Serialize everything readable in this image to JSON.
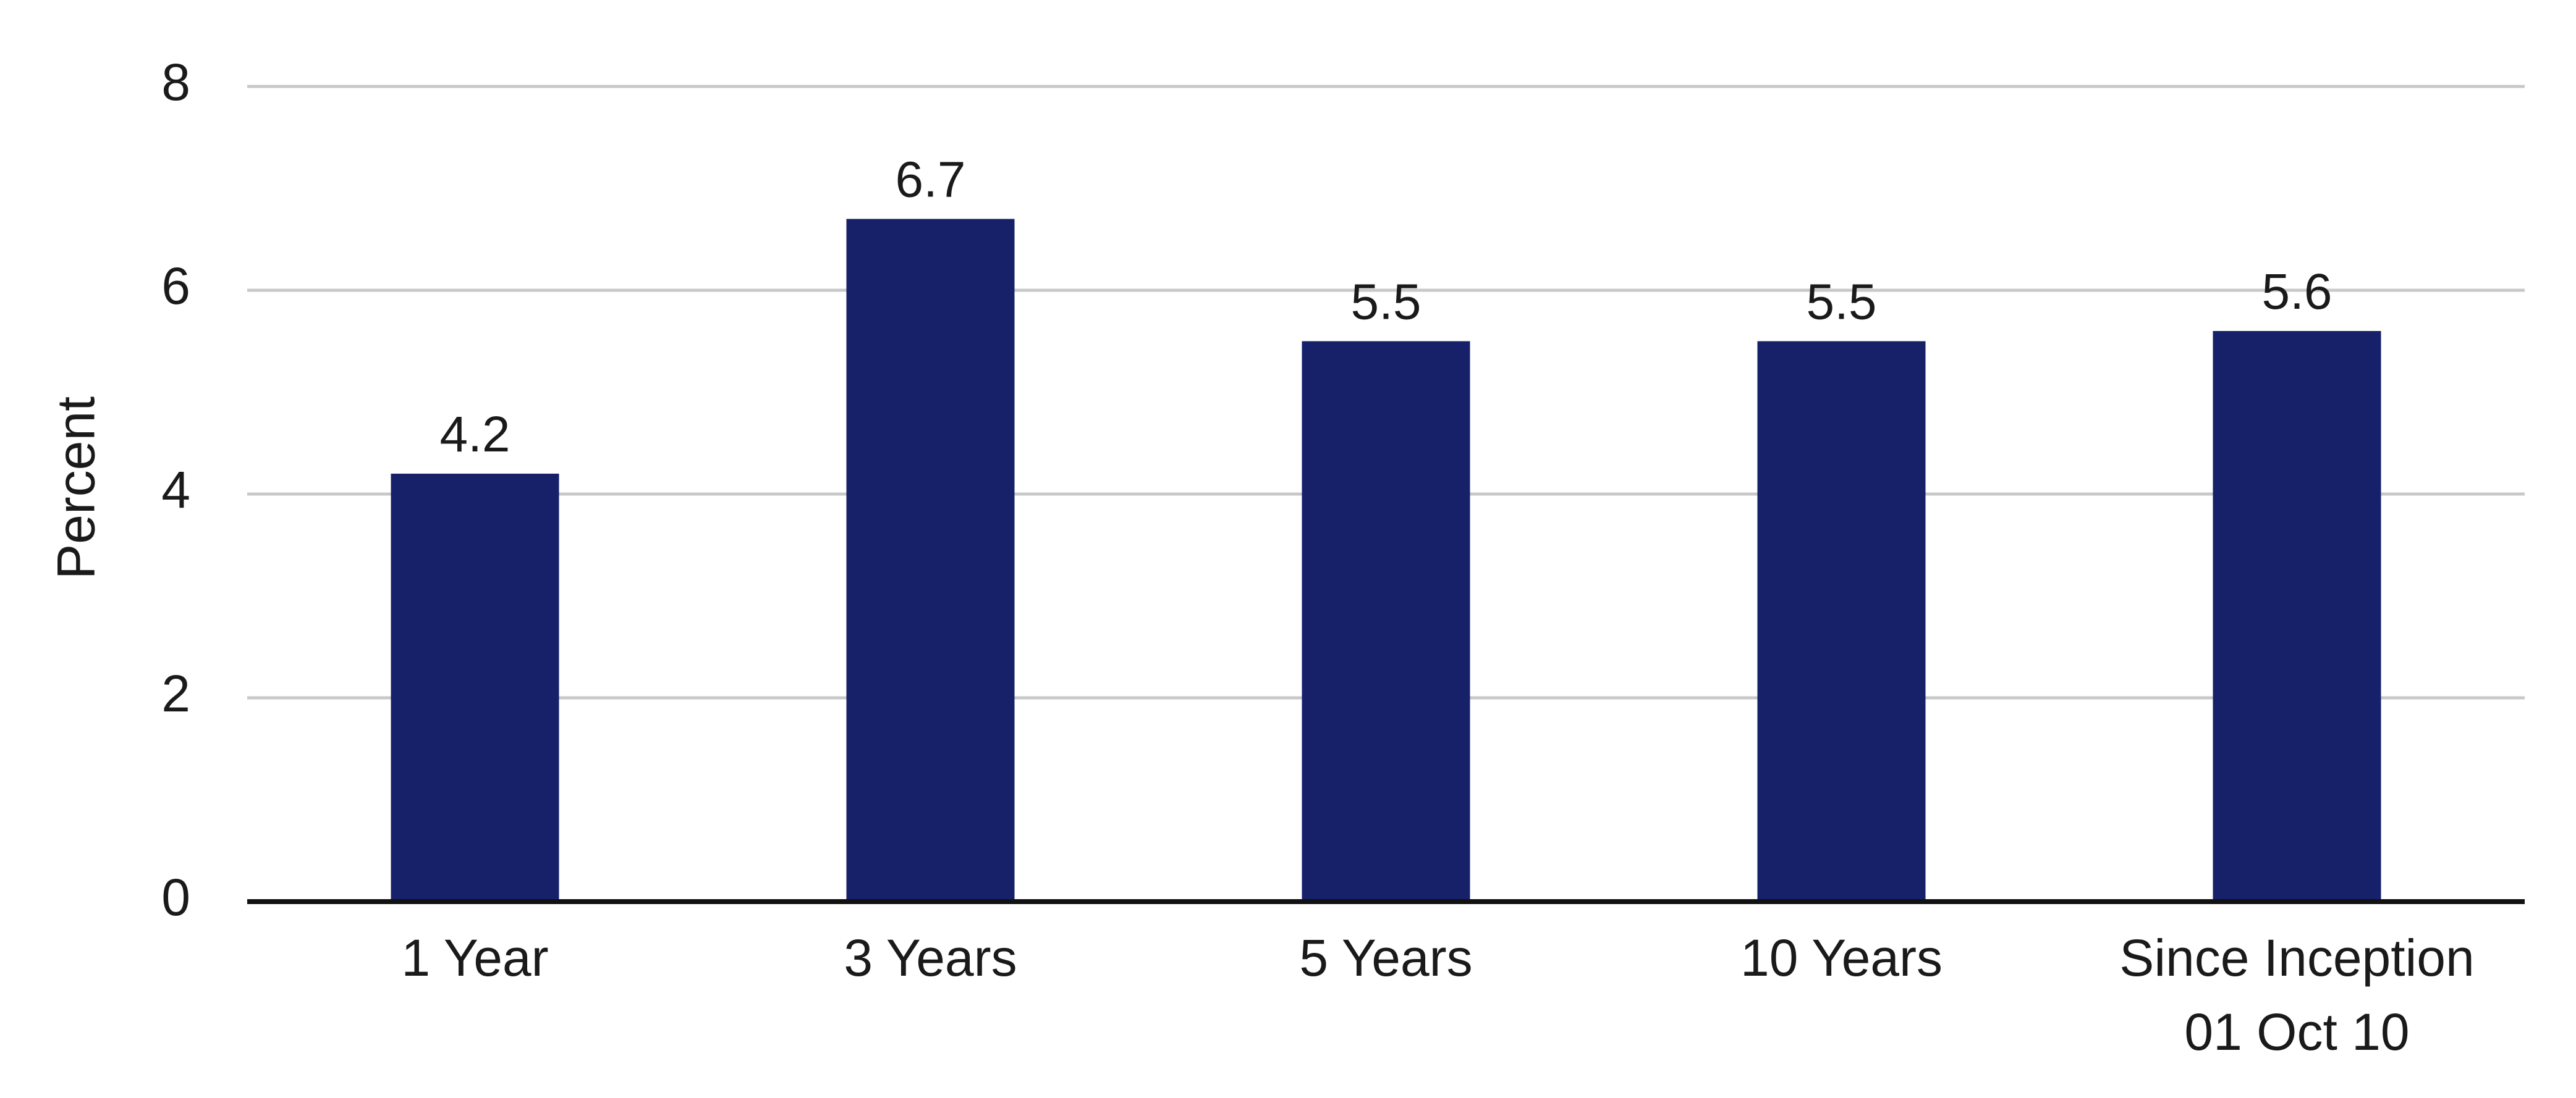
{
  "chart_data": {
    "type": "bar",
    "title": "",
    "xlabel": "",
    "ylabel": "Percent",
    "ylim": [
      0,
      8
    ],
    "yticks": [
      0,
      2,
      4,
      6,
      8
    ],
    "grid": true,
    "categories": [
      [
        "1 Year"
      ],
      [
        "3 Years"
      ],
      [
        "5 Years"
      ],
      [
        "10 Years"
      ],
      [
        "Since Inception",
        "01 Oct 10"
      ]
    ],
    "values": [
      4.2,
      6.7,
      5.5,
      5.5,
      5.6
    ],
    "data_labels": [
      "4.2",
      "6.7",
      "5.5",
      "5.5",
      "5.6"
    ],
    "bar_color": "#16216a"
  }
}
